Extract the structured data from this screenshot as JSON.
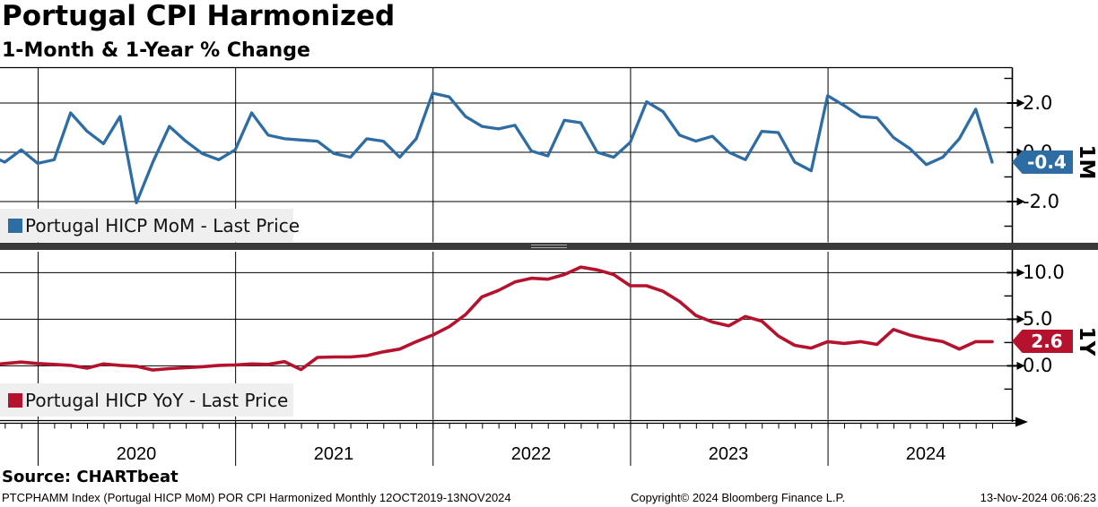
{
  "title": "Portugal CPI Harmonized",
  "subtitle": "1-Month & 1-Year % Change",
  "source": "Source: CHARTbeat",
  "footer": {
    "left": "PTCPHAMM Index (Portugal HICP MoM) POR CPI Harmonized  Monthly 12OCT2019-13NOV2024",
    "center": "Copyright© 2024 Bloomberg Finance L.P.",
    "right": "13-Nov-2024 06:06:23"
  },
  "colors": {
    "mom_blue": "#2e6da4",
    "yoy_red": "#b5122e",
    "legend_bg": "#efefef",
    "divider_gray": "#3a3a3a",
    "grid_black": "#000000"
  },
  "top_panel": {
    "legend": "Portugal HICP MoM - Last Price",
    "axis_label": "1M",
    "last_price": "-0.4",
    "yticks": [
      "2.0",
      "0.0",
      "-2.0"
    ]
  },
  "bottom_panel": {
    "legend": "Portugal HICP YoY - Last Price",
    "axis_label": "1Y",
    "last_price": "2.6",
    "yticks": [
      "10.0",
      "5.0",
      "0.0"
    ]
  },
  "x_axis": {
    "years": [
      "2020",
      "2021",
      "2022",
      "2023",
      "2024"
    ]
  },
  "chart_data": [
    {
      "type": "line",
      "panel": "top",
      "name": "Portugal HICP MoM - Last Price",
      "color": "#2e6da4",
      "frequency": "monthly",
      "x_start": "2019-10",
      "x_end": "2024-11",
      "ylabel": "1M",
      "axis_ticks": [
        2.0,
        0.0,
        -2.0
      ],
      "ylim": [
        -3.6,
        3.5
      ],
      "last_price": -0.4,
      "values": [
        -0.1,
        -0.4,
        0.1,
        -0.45,
        -0.3,
        1.6,
        0.85,
        0.35,
        1.45,
        -2.05,
        -0.4,
        1.05,
        0.45,
        -0.05,
        -0.3,
        0.1,
        1.6,
        0.7,
        0.55,
        0.5,
        0.45,
        -0.05,
        -0.2,
        0.55,
        0.45,
        -0.2,
        0.55,
        2.4,
        2.25,
        1.45,
        1.05,
        0.95,
        1.1,
        0.05,
        -0.15,
        1.3,
        1.2,
        0.0,
        -0.2,
        0.4,
        2.05,
        1.65,
        0.7,
        0.45,
        0.65,
        0.0,
        -0.3,
        0.85,
        0.8,
        -0.4,
        -0.75,
        2.3,
        1.9,
        1.45,
        1.4,
        0.6,
        0.15,
        -0.5,
        -0.2,
        0.55,
        1.75,
        -0.4
      ]
    },
    {
      "type": "line",
      "panel": "bottom",
      "name": "Portugal HICP YoY - Last Price",
      "color": "#b5122e",
      "frequency": "monthly",
      "x_start": "2019-10",
      "x_end": "2024-11",
      "ylabel": "1Y",
      "axis_ticks": [
        10.0,
        5.0,
        0.0
      ],
      "ylim": [
        -5.8,
        12.3
      ],
      "last_price": 2.6,
      "values": [
        0.1,
        0.25,
        0.4,
        0.25,
        0.15,
        0.05,
        -0.25,
        0.2,
        0.05,
        -0.05,
        -0.45,
        -0.3,
        -0.2,
        -0.1,
        0.05,
        0.1,
        0.2,
        0.15,
        0.45,
        -0.4,
        0.9,
        0.95,
        0.95,
        1.1,
        1.5,
        1.8,
        2.6,
        3.3,
        4.2,
        5.5,
        7.4,
        8.1,
        9.0,
        9.4,
        9.3,
        9.8,
        10.6,
        10.3,
        9.8,
        8.6,
        8.6,
        8.0,
        6.9,
        5.4,
        4.7,
        4.3,
        5.3,
        4.8,
        3.2,
        2.2,
        1.9,
        2.6,
        2.4,
        2.6,
        2.3,
        3.9,
        3.3,
        2.9,
        2.6,
        1.8,
        2.6,
        2.6
      ]
    }
  ]
}
